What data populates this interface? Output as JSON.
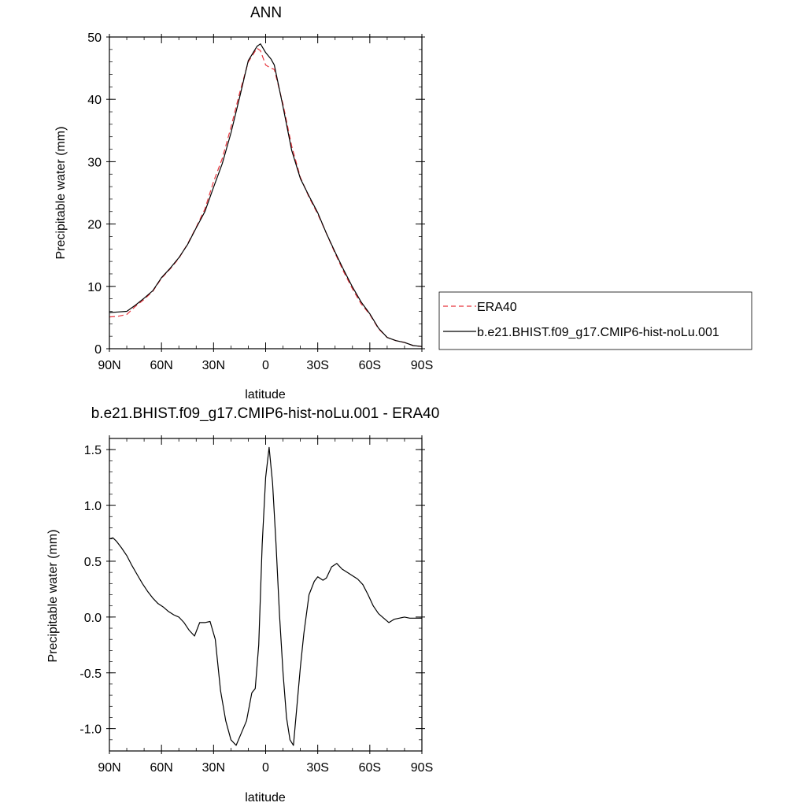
{
  "chart_data": [
    {
      "type": "line",
      "title": "ANN",
      "xlabel": "latitude",
      "ylabel": "Precipitable water (mm)",
      "xlim": [
        90,
        -90
      ],
      "ylim": [
        0,
        50
      ],
      "x_ticks": [
        90,
        60,
        30,
        0,
        -30,
        -60,
        -90
      ],
      "x_tick_labels": [
        "90N",
        "60N",
        "30N",
        "0",
        "30S",
        "60S",
        "90S"
      ],
      "y_ticks": [
        0,
        10,
        20,
        30,
        40,
        50
      ],
      "y_tick_labels": [
        "0",
        "10",
        "20",
        "30",
        "40",
        "50"
      ],
      "legend": {
        "placement": "right"
      },
      "series": [
        {
          "name": "ERA40",
          "color": "#e8343c",
          "dash": "dashed",
          "x": [
            90,
            85,
            80,
            75,
            70,
            65,
            60,
            55,
            50,
            45,
            40,
            35,
            30,
            25,
            20,
            15,
            10,
            5,
            3,
            0,
            -3,
            -5,
            -10,
            -15,
            -20,
            -25,
            -30,
            -35,
            -40,
            -45,
            -50,
            -55,
            -60,
            -65,
            -70,
            -75,
            -80,
            -85,
            -90
          ],
          "y": [
            5.1,
            5.2,
            5.5,
            6.8,
            7.9,
            9.2,
            11.3,
            12.8,
            14.5,
            16.8,
            19.5,
            22.4,
            26.8,
            30.5,
            35.5,
            41.0,
            46.0,
            48.2,
            47.8,
            45.5,
            45.0,
            44.8,
            39.2,
            32.5,
            27.5,
            24.3,
            21.6,
            18.5,
            15.3,
            12.3,
            9.6,
            7.2,
            5.5,
            3.2,
            1.8,
            1.3,
            1.0,
            0.5,
            0.35
          ]
        },
        {
          "name": "b.e21.BHIST.f09_g17.CMIP6-hist-noLu.001",
          "color": "#000000",
          "dash": "solid",
          "x": [
            90,
            85,
            80,
            75,
            70,
            65,
            60,
            55,
            50,
            45,
            40,
            35,
            30,
            25,
            20,
            15,
            10,
            5,
            3,
            0,
            -3,
            -5,
            -10,
            -15,
            -20,
            -25,
            -30,
            -35,
            -40,
            -45,
            -50,
            -55,
            -60,
            -65,
            -70,
            -75,
            -80,
            -85,
            -90
          ],
          "y": [
            5.8,
            5.9,
            6.0,
            7.0,
            8.1,
            9.3,
            11.4,
            12.9,
            14.6,
            16.7,
            19.4,
            22.0,
            25.9,
            29.7,
            34.6,
            40.3,
            46.2,
            48.5,
            48.9,
            47.5,
            46.5,
            45.5,
            38.8,
            31.8,
            27.3,
            24.5,
            21.8,
            18.5,
            15.5,
            12.6,
            9.9,
            7.5,
            5.6,
            3.3,
            1.8,
            1.3,
            1.0,
            0.5,
            0.35
          ]
        }
      ]
    },
    {
      "type": "line",
      "title": "b.e21.BHIST.f09_g17.CMIP6-hist-noLu.001 - ERA40",
      "xlabel": "latitude",
      "ylabel": "Precipitable water (mm)",
      "xlim": [
        90,
        -90
      ],
      "ylim": [
        -1.2,
        1.6
      ],
      "x_ticks": [
        90,
        60,
        30,
        0,
        -30,
        -60,
        -90
      ],
      "x_tick_labels": [
        "90N",
        "60N",
        "30N",
        "0",
        "30S",
        "60S",
        "90S"
      ],
      "y_ticks": [
        -1.0,
        -0.5,
        0.0,
        0.5,
        1.0,
        1.5
      ],
      "y_tick_labels": [
        "-1.0",
        "-0.5",
        "0.0",
        "0.5",
        "1.0",
        "1.5"
      ],
      "series": [
        {
          "color": "#000000",
          "dash": "solid",
          "x": [
            90,
            88,
            86,
            83,
            80,
            77,
            74,
            71,
            68,
            65,
            62,
            59,
            56,
            53,
            50,
            47,
            44,
            41,
            38,
            35,
            32,
            29,
            26,
            23,
            20,
            17,
            14,
            11,
            8,
            6,
            4,
            2,
            0,
            -2,
            -4,
            -6,
            -8,
            -10,
            -12,
            -14,
            -16,
            -18,
            -20,
            -22,
            -25,
            -28,
            -30,
            -33,
            -35,
            -38,
            -41,
            -44,
            -47,
            -50,
            -53,
            -56,
            -59,
            -62,
            -65,
            -68,
            -71,
            -74,
            -77,
            -80,
            -83,
            -86,
            -88,
            -90
          ],
          "y": [
            0.7,
            0.71,
            0.68,
            0.62,
            0.55,
            0.46,
            0.38,
            0.3,
            0.23,
            0.17,
            0.12,
            0.09,
            0.05,
            0.02,
            0.0,
            -0.05,
            -0.12,
            -0.17,
            -0.05,
            -0.05,
            -0.04,
            -0.2,
            -0.66,
            -0.93,
            -1.1,
            -1.15,
            -1.04,
            -0.93,
            -0.68,
            -0.64,
            -0.25,
            0.65,
            1.25,
            1.52,
            1.2,
            0.65,
            0.02,
            -0.5,
            -0.9,
            -1.1,
            -1.15,
            -0.8,
            -0.45,
            -0.15,
            0.2,
            0.32,
            0.36,
            0.33,
            0.35,
            0.45,
            0.48,
            0.43,
            0.4,
            0.37,
            0.34,
            0.29,
            0.2,
            0.1,
            0.03,
            -0.01,
            -0.05,
            -0.02,
            -0.01,
            0.0,
            -0.01,
            -0.01,
            -0.01,
            -0.01
          ]
        }
      ]
    }
  ]
}
